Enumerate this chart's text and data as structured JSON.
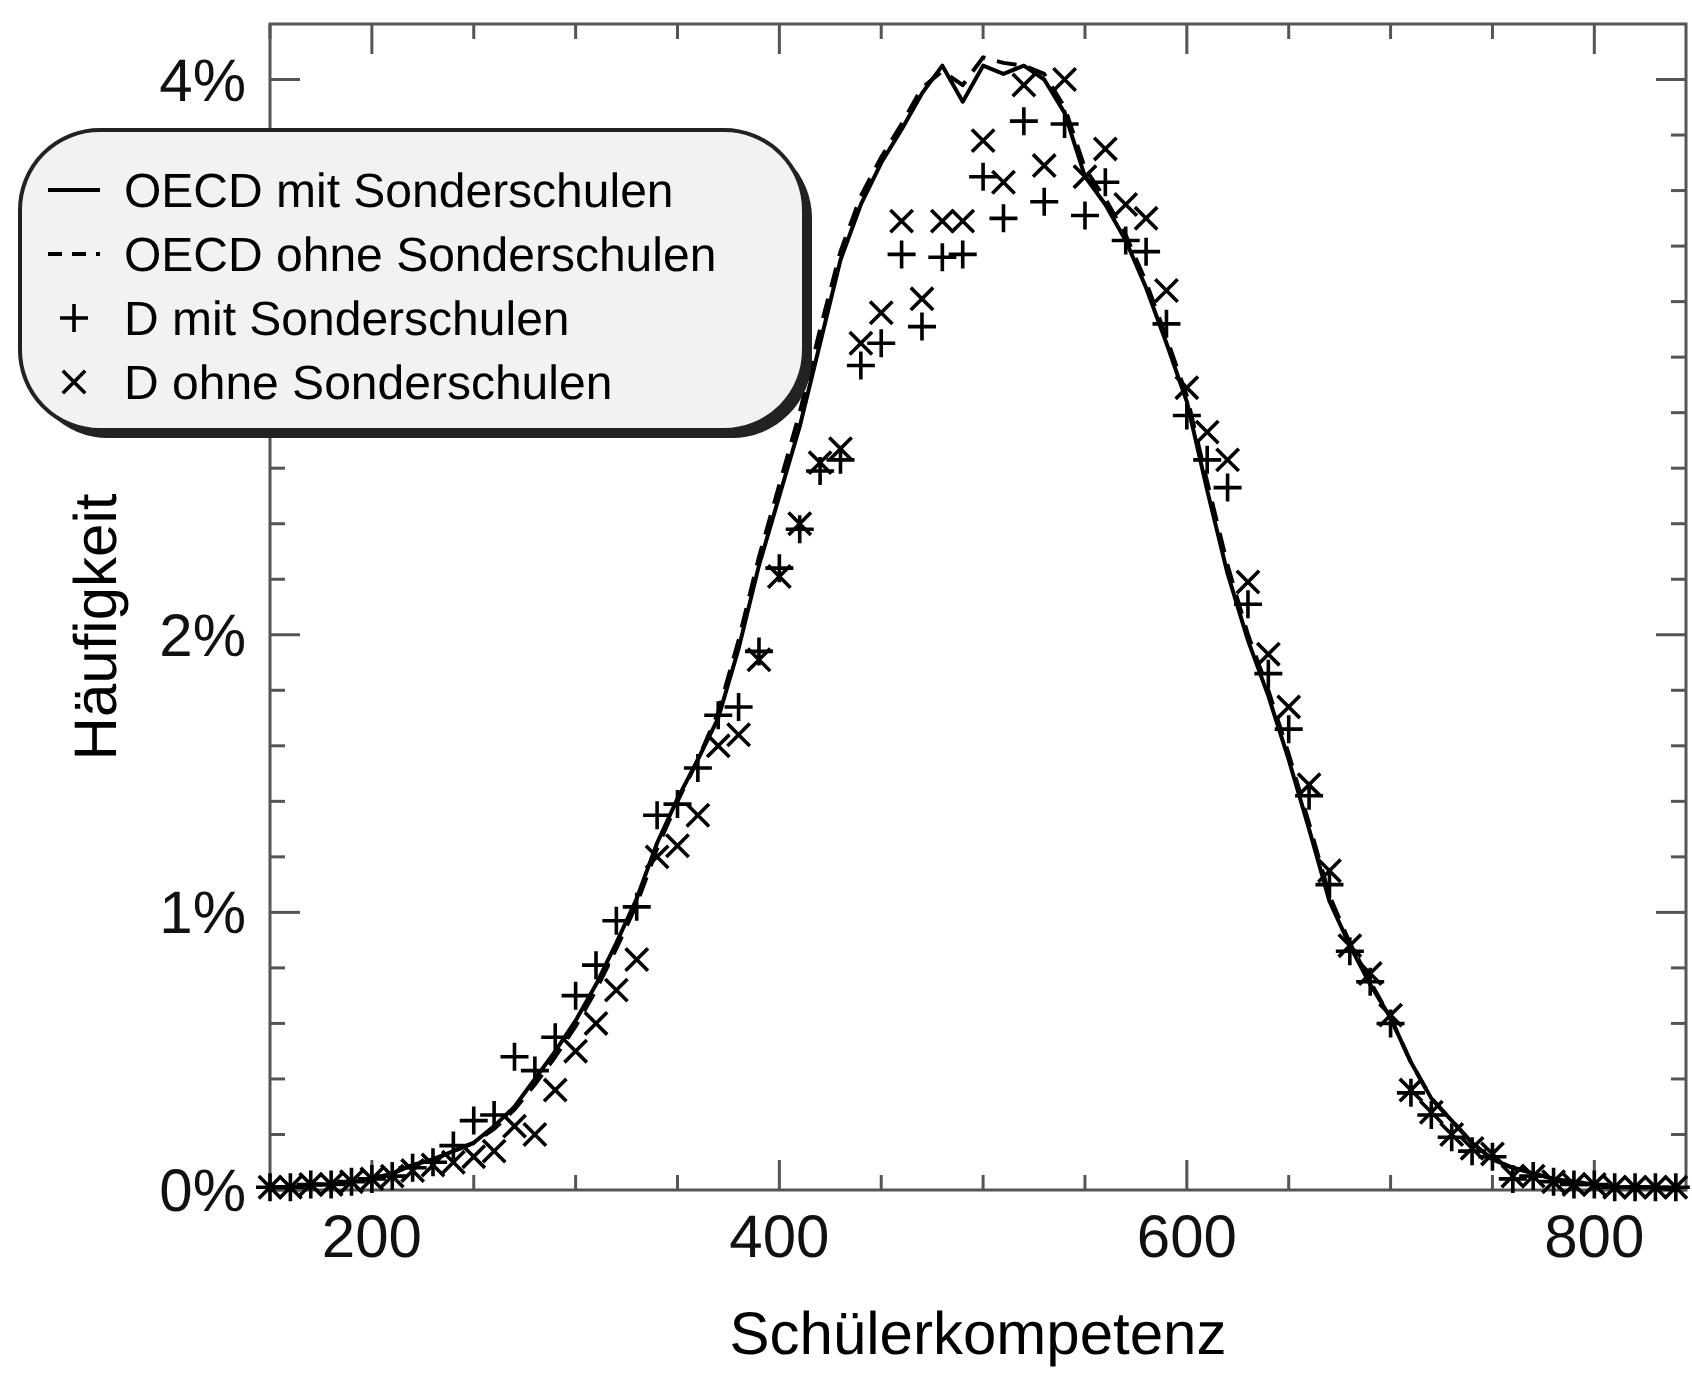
{
  "chart_data": {
    "type": "line",
    "xlabel": "Schülerkompetenz",
    "ylabel": "Häufigkeit",
    "x": [
      150,
      160,
      170,
      180,
      190,
      200,
      210,
      220,
      230,
      240,
      250,
      260,
      270,
      280,
      290,
      300,
      310,
      320,
      330,
      340,
      350,
      360,
      370,
      380,
      390,
      400,
      410,
      420,
      430,
      440,
      450,
      460,
      470,
      480,
      490,
      500,
      510,
      520,
      530,
      540,
      550,
      560,
      570,
      580,
      590,
      600,
      610,
      620,
      630,
      640,
      650,
      660,
      670,
      680,
      690,
      700,
      710,
      720,
      730,
      740,
      750,
      760,
      770,
      780,
      790,
      800,
      810,
      820,
      830,
      840
    ],
    "xlim": [
      150,
      845
    ],
    "xticks": [
      {
        "value": 150,
        "label": null
      },
      200,
      {
        "value": 250,
        "label": null
      },
      {
        "value": 300,
        "label": null
      },
      {
        "value": 350,
        "label": null
      },
      400,
      {
        "value": 450,
        "label": null
      },
      {
        "value": 500,
        "label": null
      },
      {
        "value": 550,
        "label": null
      },
      600,
      {
        "value": 650,
        "label": null
      },
      {
        "value": 700,
        "label": null
      },
      {
        "value": 750,
        "label": null
      },
      800
    ],
    "ylim": [
      0,
      4.2
    ],
    "yticks": [
      {
        "value": 0,
        "label": "0%"
      },
      {
        "value": 0.2,
        "label": null
      },
      {
        "value": 0.4,
        "label": null
      },
      {
        "value": 0.6,
        "label": null
      },
      {
        "value": 0.8,
        "label": null
      },
      {
        "value": 1,
        "label": "1%"
      },
      {
        "value": 1.2,
        "label": null
      },
      {
        "value": 1.4,
        "label": null
      },
      {
        "value": 1.6,
        "label": null
      },
      {
        "value": 1.8,
        "label": null
      },
      {
        "value": 2,
        "label": "2%"
      },
      {
        "value": 2.2,
        "label": null
      },
      {
        "value": 2.4,
        "label": null
      },
      {
        "value": 2.6,
        "label": null
      },
      {
        "value": 2.8,
        "label": null
      },
      {
        "value": 3,
        "label": null
      },
      {
        "value": 3.2,
        "label": null
      },
      {
        "value": 3.4,
        "label": null
      },
      {
        "value": 3.6,
        "label": null
      },
      {
        "value": 3.8,
        "label": null
      },
      {
        "value": 4,
        "label": "4%"
      }
    ],
    "grid": false,
    "legend": "top left",
    "series": [
      {
        "name": "OECD mit Sonderschulen",
        "color": "#000000",
        "line_style": "solid",
        "marker": "none",
        "values": [
          0.01,
          0.01,
          0.02,
          0.02,
          0.03,
          0.04,
          0.06,
          0.09,
          0.11,
          0.14,
          0.17,
          0.23,
          0.3,
          0.4,
          0.5,
          0.61,
          0.74,
          0.89,
          1.05,
          1.25,
          1.41,
          1.55,
          1.7,
          1.95,
          2.25,
          2.5,
          2.75,
          3.05,
          3.35,
          3.55,
          3.7,
          3.82,
          3.95,
          4.05,
          3.92,
          4.05,
          4.02,
          4.05,
          4.0,
          3.88,
          3.65,
          3.55,
          3.42,
          3.25,
          3.05,
          2.84,
          2.52,
          2.22,
          1.98,
          1.78,
          1.55,
          1.3,
          1.04,
          0.88,
          0.74,
          0.62,
          0.46,
          0.33,
          0.25,
          0.17,
          0.11,
          0.08,
          0.06,
          0.04,
          0.03,
          0.02,
          0.01,
          0.01,
          0.01,
          0.0
        ]
      },
      {
        "name": "OECD ohne Sonderschulen",
        "color": "#000000",
        "line_style": "dashed",
        "marker": "none",
        "values": [
          0.01,
          0.01,
          0.02,
          0.02,
          0.03,
          0.04,
          0.06,
          0.09,
          0.11,
          0.14,
          0.17,
          0.22,
          0.29,
          0.38,
          0.48,
          0.59,
          0.72,
          0.87,
          1.03,
          1.23,
          1.4,
          1.55,
          1.72,
          1.98,
          2.28,
          2.54,
          2.8,
          3.1,
          3.38,
          3.58,
          3.72,
          3.84,
          3.97,
          4.03,
          3.98,
          4.08,
          4.06,
          4.05,
          4.02,
          3.9,
          3.68,
          3.57,
          3.44,
          3.27,
          3.07,
          2.86,
          2.55,
          2.25,
          2.0,
          1.8,
          1.57,
          1.32,
          1.06,
          0.89,
          0.75,
          0.62,
          0.46,
          0.33,
          0.25,
          0.17,
          0.11,
          0.08,
          0.06,
          0.04,
          0.03,
          0.02,
          0.01,
          0.01,
          0.01,
          0.0
        ]
      },
      {
        "name": "D mit Sonderschulen",
        "color": "#000000",
        "type": "scatter",
        "marker": "cross",
        "values": [
          0.01,
          0.01,
          0.02,
          0.02,
          0.03,
          0.04,
          0.05,
          0.08,
          0.1,
          0.16,
          0.25,
          0.27,
          0.48,
          0.43,
          0.55,
          0.7,
          0.81,
          0.97,
          1.02,
          1.35,
          1.39,
          1.52,
          1.71,
          1.74,
          1.94,
          2.24,
          2.38,
          2.59,
          2.63,
          2.97,
          3.05,
          3.37,
          3.11,
          3.36,
          3.37,
          3.65,
          3.5,
          3.85,
          3.56,
          3.84,
          3.51,
          3.63,
          3.42,
          3.38,
          3.12,
          2.79,
          2.63,
          2.53,
          2.11,
          1.86,
          1.66,
          1.42,
          1.1,
          0.86,
          0.75,
          0.6,
          0.35,
          0.27,
          0.19,
          0.14,
          0.12,
          0.04,
          0.05,
          0.03,
          0.02,
          0.02,
          0.01,
          0.01,
          0.01,
          0.01
        ]
      },
      {
        "name": "D ohne Sonderschulen",
        "color": "#000000",
        "type": "scatter",
        "marker": "x",
        "values": [
          0.01,
          0.01,
          0.02,
          0.02,
          0.03,
          0.04,
          0.05,
          0.07,
          0.09,
          0.1,
          0.12,
          0.14,
          0.23,
          0.2,
          0.36,
          0.5,
          0.6,
          0.72,
          0.83,
          1.2,
          1.24,
          1.35,
          1.6,
          1.64,
          1.91,
          2.21,
          2.4,
          2.62,
          2.67,
          3.05,
          3.16,
          3.49,
          3.21,
          3.49,
          3.49,
          3.78,
          3.63,
          3.98,
          3.69,
          4.0,
          3.65,
          3.75,
          3.55,
          3.5,
          3.24,
          2.89,
          2.73,
          2.63,
          2.19,
          1.93,
          1.74,
          1.46,
          1.15,
          0.88,
          0.78,
          0.63,
          0.36,
          0.28,
          0.2,
          0.15,
          0.13,
          0.05,
          0.05,
          0.03,
          0.02,
          0.02,
          0.01,
          0.01,
          0.01,
          0.01
        ]
      }
    ]
  }
}
